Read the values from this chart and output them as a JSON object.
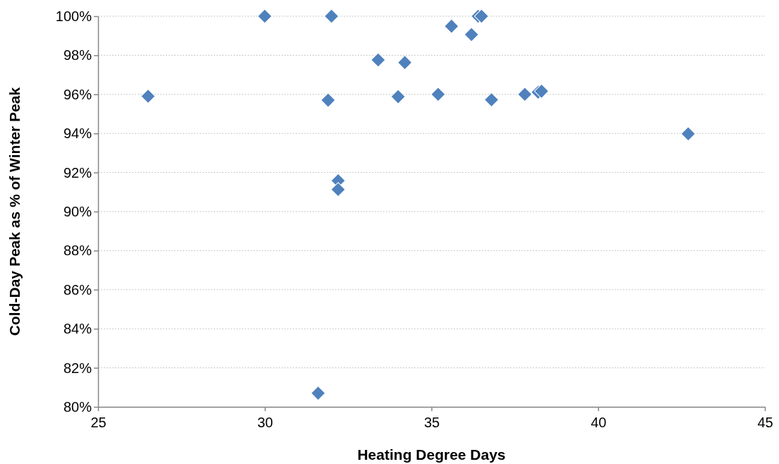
{
  "chart_data": {
    "type": "scatter",
    "xlabel": "Heating Degree Days",
    "ylabel": "Cold-Day Peak as % of Winter Peak",
    "x": [
      26.5,
      30,
      32,
      33.4,
      34.2,
      31.9,
      34,
      32.2,
      32.2,
      35.2,
      35.6,
      36.2,
      36.4,
      36.5,
      36.8,
      37.8,
      38.2,
      38.3,
      42.7,
      31.6
    ],
    "values": [
      95.9,
      100,
      100,
      97.76,
      97.63,
      95.7,
      95.88,
      91.58,
      91.13,
      96,
      99.49,
      99.06,
      100,
      100,
      95.72,
      96,
      96.11,
      96.16,
      93.98,
      80.7
    ],
    "color": "#4f81bd",
    "marker": "diamond",
    "xlim": [
      25,
      45
    ],
    "xticks": [
      25,
      30,
      35,
      40,
      45
    ],
    "ylim": [
      80,
      100
    ],
    "yticks": [
      {
        "value": 80,
        "label": "80%"
      },
      {
        "value": 82,
        "label": "82%"
      },
      {
        "value": 84,
        "label": "84%"
      },
      {
        "value": 86,
        "label": "86%"
      },
      {
        "value": 88,
        "label": "88%"
      },
      {
        "value": 90,
        "label": "90%"
      },
      {
        "value": 92,
        "label": "92%"
      },
      {
        "value": 94,
        "label": "94%"
      },
      {
        "value": 96,
        "label": "96%"
      },
      {
        "value": 98,
        "label": "98%"
      },
      {
        "value": 100,
        "label": "100%"
      }
    ],
    "grid": "y"
  }
}
